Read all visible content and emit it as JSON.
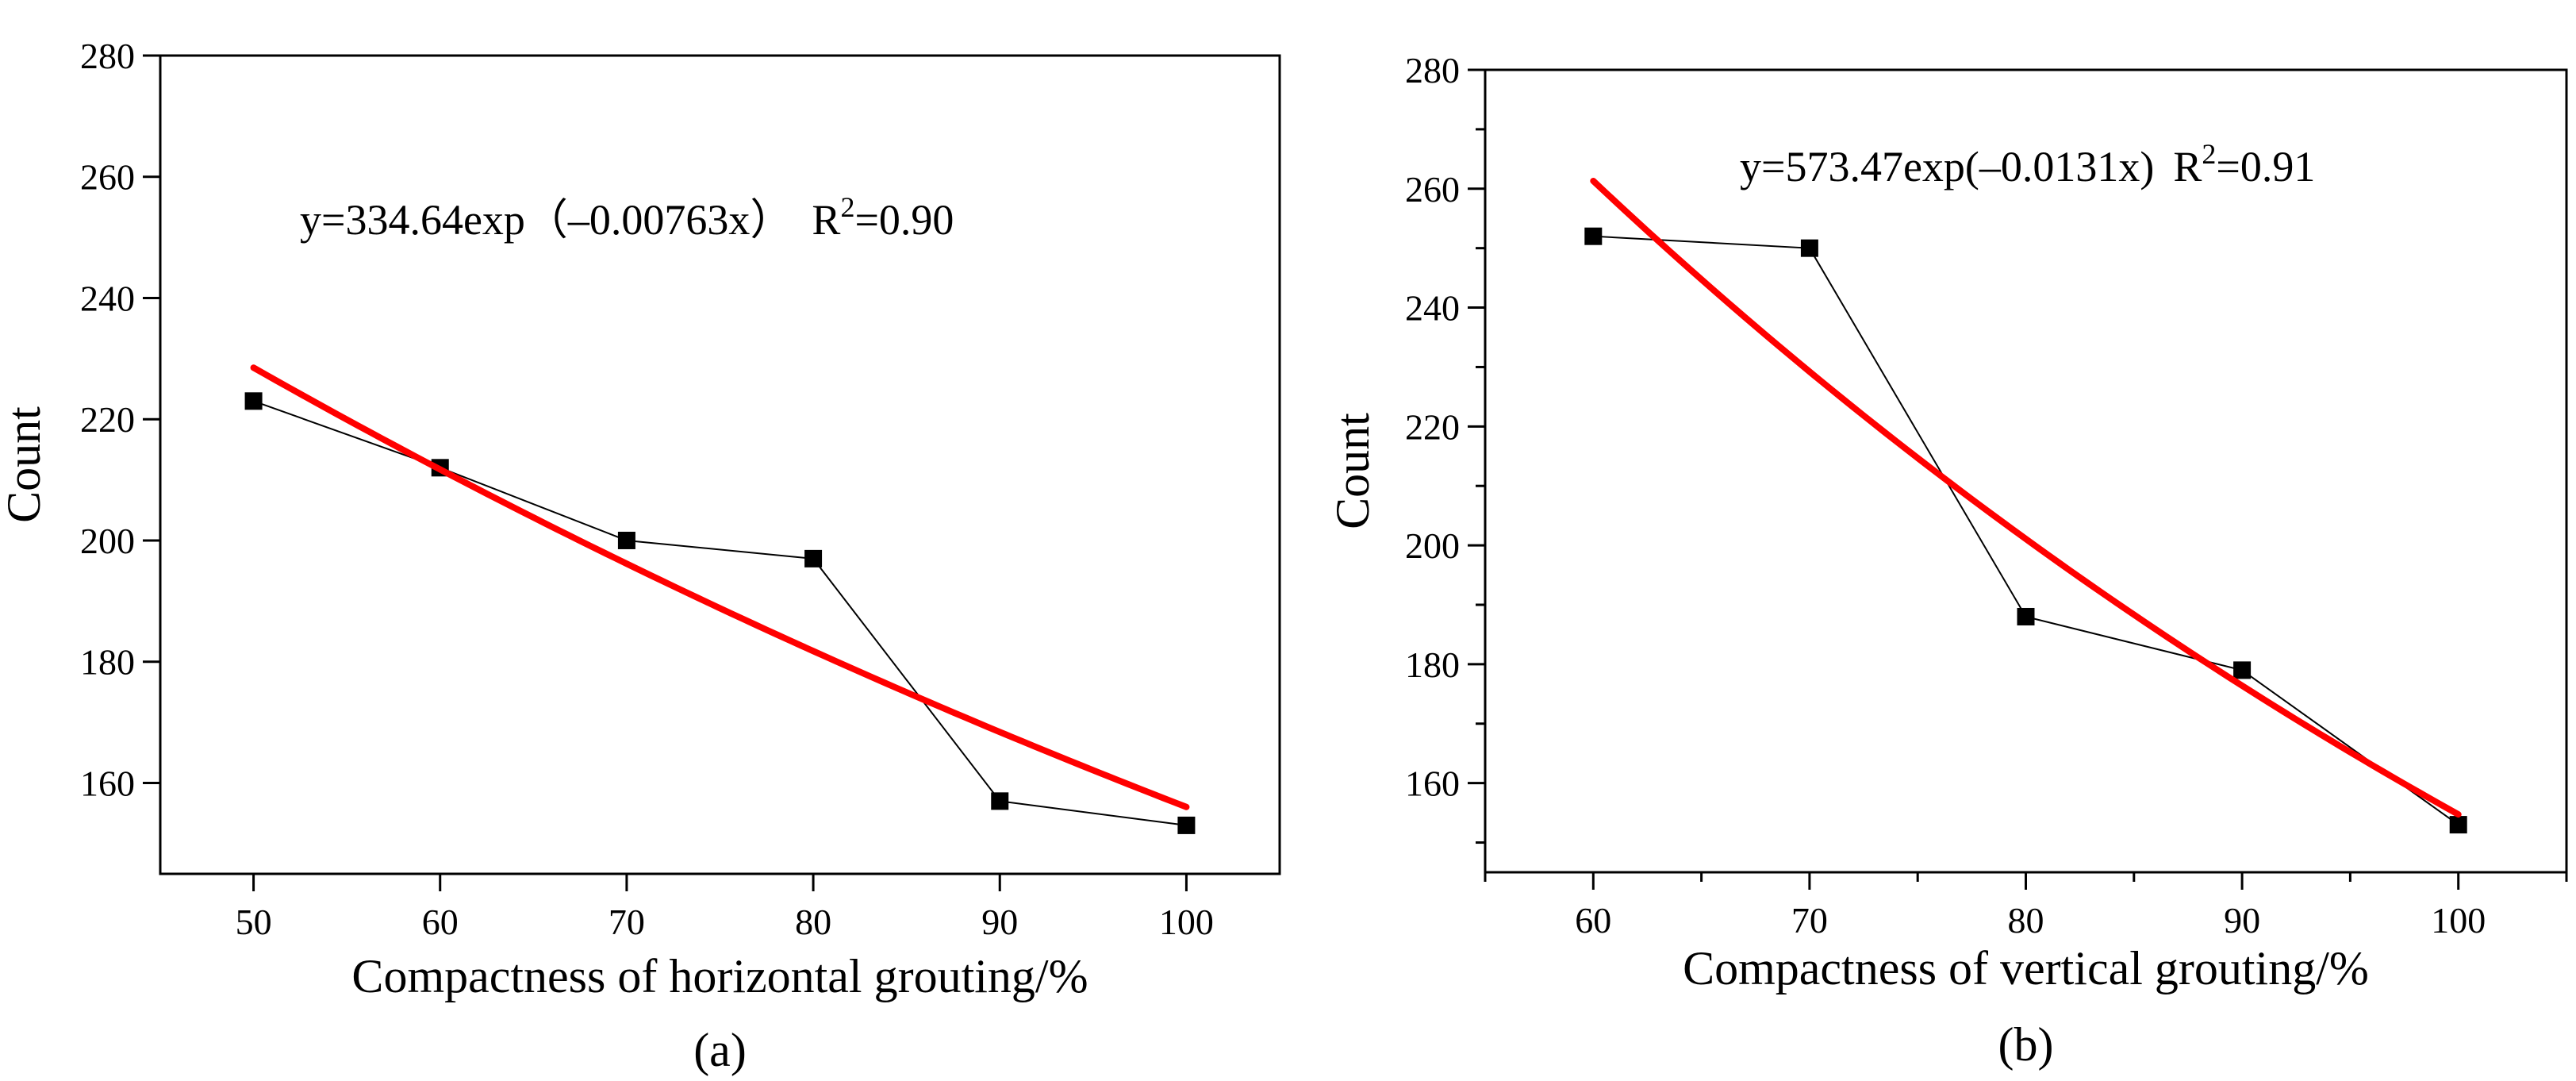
{
  "chart_data": [
    {
      "type": "scatter",
      "panel_caption": "(a)",
      "xlabel": "Compactness of horizontal grouting/%",
      "ylabel": "Count",
      "xlim": [
        45,
        105
      ],
      "ylim": [
        145,
        280
      ],
      "x_ticks": [
        50,
        60,
        70,
        80,
        90,
        100
      ],
      "y_ticks": [
        160,
        180,
        200,
        220,
        240,
        260,
        280
      ],
      "equation": {
        "prefix": "y=334.64exp（–0.00763x）",
        "r_label": "R",
        "r_sup": "2",
        "r_value": "=0.90"
      },
      "series": [
        {
          "name": "Count",
          "x": [
            50,
            60,
            70,
            80,
            90,
            100
          ],
          "values": [
            223,
            212,
            200,
            197,
            157,
            153
          ],
          "color": "#000000",
          "marker": "square",
          "line": "thin"
        }
      ],
      "fit": {
        "name": "Exponential fit",
        "a": 334.64,
        "b": -0.00763,
        "x_range": [
          50,
          100
        ],
        "color": "#ff0000"
      }
    },
    {
      "type": "scatter",
      "panel_caption": "(b)",
      "xlabel": "Compactness of vertical grouting/%",
      "ylabel": "Count",
      "xlim": [
        55,
        105
      ],
      "ylim": [
        145,
        280
      ],
      "x_ticks": [
        60,
        70,
        80,
        90,
        100
      ],
      "y_ticks": [
        160,
        180,
        200,
        220,
        240,
        260,
        280
      ],
      "equation": {
        "prefix": "y=573.47exp(–0.0131x)",
        "r_label": "R",
        "r_sup": "2",
        "r_value": "=0.91"
      },
      "series": [
        {
          "name": "Count",
          "x": [
            60,
            70,
            80,
            90,
            100
          ],
          "values": [
            252,
            250,
            188,
            179,
            153
          ],
          "color": "#000000",
          "marker": "square",
          "line": "thin"
        }
      ],
      "fit": {
        "name": "Exponential fit",
        "a": 573.47,
        "b": -0.0131,
        "x_range": [
          60,
          100
        ],
        "color": "#ff0000"
      }
    }
  ]
}
